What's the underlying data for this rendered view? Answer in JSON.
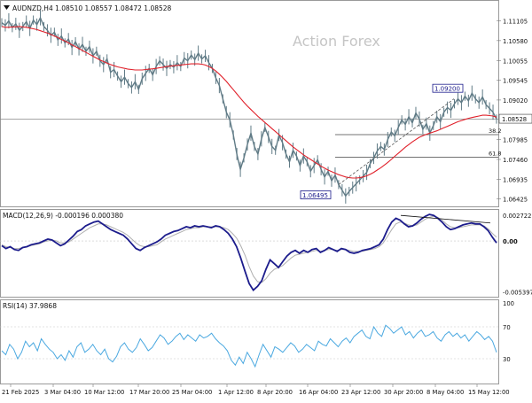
{
  "colors": {
    "price": "#607b86",
    "ma": "#e0202a",
    "macd": "#1c1c8c",
    "signal": "#b0b0b0",
    "rsi": "#4aa8e0",
    "grid": "#c8c8c8",
    "hline": "#888888",
    "text": "#111111",
    "watermark": "#c5c5c5"
  },
  "watermark": "Action Forex",
  "chart_data": [
    {
      "type": "line",
      "title": "AUDNZD,H4  1.08510 1.08557 1.08472 1.08528",
      "header_icon": "triangle-down-icon",
      "ylim": [
        1.0625,
        1.116
      ],
      "yticks": [
        "1.11105",
        "1.10580",
        "1.10055",
        "1.09545",
        "1.09020",
        "1.08528",
        "1.07985",
        "1.07460",
        "1.06935",
        "1.06425"
      ],
      "last_price_label": "1.08528",
      "fib_levels": [
        {
          "label": "38.2",
          "value": 1.0811,
          "x_start": "7 Apr"
        },
        {
          "label": "61.8",
          "value": 1.0752,
          "x_start": "13 Apr"
        }
      ],
      "last_price_line": 1.0852,
      "annotations": [
        {
          "text": "1.06495",
          "value": 1.06495,
          "at": "18 Apr"
        },
        {
          "text": "1.09200",
          "value": 1.092,
          "at": "7 May"
        }
      ],
      "series": [
        {
          "role": "price",
          "values": [
            1.1105,
            1.1098,
            1.111,
            1.1092,
            1.1102,
            1.1085,
            1.1095,
            1.1108,
            1.109,
            1.1112,
            1.11,
            1.1118,
            1.1095,
            1.1085,
            1.1072,
            1.108,
            1.106,
            1.107,
            1.1052,
            1.1062,
            1.104,
            1.1055,
            1.1035,
            1.1048,
            1.103,
            1.1042,
            1.1018,
            1.103,
            1.1005,
            1.0995,
            1.101,
            1.0975,
            1.0982,
            1.0965,
            1.095,
            1.0962,
            1.0945,
            1.0935,
            1.095,
            1.093,
            1.0958,
            1.0972,
            1.0985,
            1.0968,
            1.099,
            1.1005,
            1.0995,
            1.0985,
            1.0995,
            1.0988,
            1.1,
            1.099,
            1.1012,
            1.1005,
            1.102,
            1.1008,
            1.1025,
            1.101,
            1.1018,
            1.1,
            1.0985,
            1.096,
            1.094,
            1.0905,
            1.087,
            1.085,
            1.081,
            1.076,
            1.072,
            1.075,
            1.0785,
            1.0815,
            1.078,
            1.076,
            1.08,
            1.083,
            1.0805,
            1.078,
            1.077,
            1.081,
            1.079,
            1.076,
            1.074,
            1.077,
            1.0755,
            1.073,
            1.0755,
            1.074,
            1.0715,
            1.073,
            1.0745,
            1.072,
            1.07,
            1.0715,
            1.069,
            1.0705,
            1.068,
            1.0665,
            1.065,
            1.0662,
            1.0672,
            1.0682,
            1.0692,
            1.0702,
            1.0712,
            1.0735,
            1.075,
            1.0768,
            1.078,
            1.0772,
            1.0798,
            1.0818,
            1.0808,
            1.083,
            1.085,
            1.0838,
            1.0858,
            1.0842,
            1.0868,
            1.0852,
            1.0825,
            1.084,
            1.0815,
            1.0835,
            1.0858,
            1.0845,
            1.087,
            1.0882,
            1.0875,
            1.0892,
            1.0905,
            1.0895,
            1.0912,
            1.09,
            1.092,
            1.0905,
            1.0895,
            1.091,
            1.089,
            1.088,
            1.087,
            1.0852
          ]
        },
        {
          "role": "moving-average",
          "values": [
            1.1095,
            1.1093,
            1.1093,
            1.1094,
            1.1094,
            1.1095,
            1.1094,
            1.1093,
            1.1091,
            1.1089,
            1.1087,
            1.1084,
            1.1081,
            1.1078,
            1.1074,
            1.107,
            1.1066,
            1.1061,
            1.1057,
            1.1052,
            1.1047,
            1.1042,
            1.1037,
            1.1032,
            1.1027,
            1.1022,
            1.1017,
            1.1012,
            1.1007,
            1.1003,
            1.0999,
            1.0995,
            1.0992,
            1.0989,
            1.0987,
            1.0985,
            1.0983,
            1.0982,
            1.0981,
            1.0981,
            1.0981,
            1.0982,
            1.0983,
            1.0984,
            1.0985,
            1.0987,
            1.0988,
            1.099,
            1.0991,
            1.0992,
            1.0993,
            1.0994,
            1.0995,
            1.0996,
            1.0997,
            1.0997,
            1.0997,
            1.0996,
            1.0994,
            1.099,
            1.0985,
            1.0978,
            1.097,
            1.0961,
            1.0951,
            1.094,
            1.0929,
            1.0918,
            1.0907,
            1.0896,
            1.0886,
            1.0877,
            1.0868,
            1.0859,
            1.0851,
            1.0843,
            1.0835,
            1.0827,
            1.0819,
            1.0811,
            1.0803,
            1.0795,
            1.0787,
            1.0779,
            1.0772,
            1.0765,
            1.0758,
            1.0752,
            1.0746,
            1.074,
            1.0734,
            1.0728,
            1.0723,
            1.0718,
            1.0714,
            1.071,
            1.0706,
            1.0703,
            1.07,
            1.0698,
            1.0697,
            1.0697,
            1.0698,
            1.07,
            1.0703,
            1.0707,
            1.0712,
            1.0718,
            1.0724,
            1.0731,
            1.0738,
            1.0746,
            1.0754,
            1.0762,
            1.077,
            1.0778,
            1.0785,
            1.0792,
            1.0798,
            1.0804,
            1.0808,
            1.0812,
            1.0815,
            1.0818,
            1.0821,
            1.0825,
            1.0829,
            1.0833,
            1.0837,
            1.0841,
            1.0845,
            1.0848,
            1.0851,
            1.0854,
            1.0856,
            1.0858,
            1.086,
            1.0862,
            1.0862,
            1.0861,
            1.086,
            1.0857
          ]
        }
      ]
    },
    {
      "type": "line",
      "title": "MACD(12,26,9) -0.000196 0.000380",
      "ylim": [
        -0.0058,
        0.003
      ],
      "yticks": [
        "0.002722",
        "0.00",
        "-0.005397"
      ],
      "zero_label": "0.00",
      "series": [
        {
          "role": "macd",
          "values": [
            -0.0005,
            -0.0008,
            -0.0006,
            -0.0009,
            -0.001,
            -0.0007,
            -0.0006,
            -0.0004,
            -0.0003,
            -0.0002,
            0.0,
            0.0002,
            0.0001,
            -0.0002,
            -0.0005,
            -0.0003,
            0.0001,
            0.0005,
            0.001,
            0.0012,
            0.0016,
            0.0018,
            0.002,
            0.0021,
            0.0018,
            0.0015,
            0.0012,
            0.001,
            0.0008,
            0.0006,
            0.0002,
            -0.0003,
            -0.0008,
            -0.001,
            -0.0007,
            -0.0005,
            -0.0003,
            -0.0001,
            0.0002,
            0.0006,
            0.0008,
            0.001,
            0.0011,
            0.0013,
            0.0015,
            0.0014,
            0.0016,
            0.0015,
            0.0016,
            0.0015,
            0.0014,
            0.0016,
            0.0015,
            0.0012,
            0.0008,
            0.0002,
            -0.0006,
            -0.0018,
            -0.0032,
            -0.0045,
            -0.0052,
            -0.0048,
            -0.0042,
            -0.003,
            -0.002,
            -0.0024,
            -0.0028,
            -0.0022,
            -0.0016,
            -0.0012,
            -0.001,
            -0.0013,
            -0.001,
            -0.0012,
            -0.0009,
            -0.0008,
            -0.0012,
            -0.001,
            -0.0007,
            -0.0009,
            -0.0011,
            -0.0008,
            -0.0009,
            -0.0012,
            -0.0013,
            -0.0012,
            -0.001,
            -0.0009,
            -0.0008,
            -0.0006,
            -0.0004,
            0.0002,
            0.0012,
            0.002,
            0.0024,
            0.0022,
            0.0018,
            0.0015,
            0.0016,
            0.0019,
            0.0023,
            0.0026,
            0.0028,
            0.0027,
            0.0024,
            0.002,
            0.0015,
            0.0012,
            0.0013,
            0.0015,
            0.0017,
            0.0018,
            0.0019,
            0.0018,
            0.0018,
            0.0015,
            0.0011,
            0.0004,
            -0.0002
          ]
        },
        {
          "role": "signal",
          "values": [
            -0.0004,
            -0.0006,
            -0.0007,
            -0.0008,
            -0.0008,
            -0.0007,
            -0.0006,
            -0.0005,
            -0.0004,
            -0.0003,
            -0.0001,
            0.0,
            0.0001,
            0.0,
            -0.0002,
            -0.0002,
            -0.0001,
            0.0002,
            0.0005,
            0.0008,
            0.0011,
            0.0014,
            0.0016,
            0.0018,
            0.0018,
            0.0017,
            0.0015,
            0.0013,
            0.0011,
            0.0009,
            0.0006,
            0.0002,
            -0.0002,
            -0.0005,
            -0.0006,
            -0.0006,
            -0.0005,
            -0.0004,
            -0.0001,
            0.0002,
            0.0004,
            0.0006,
            0.0008,
            0.001,
            0.0012,
            0.0013,
            0.0014,
            0.0014,
            0.0015,
            0.0015,
            0.0015,
            0.0015,
            0.0015,
            0.0014,
            0.0012,
            0.0008,
            0.0003,
            -0.0005,
            -0.0015,
            -0.0027,
            -0.0037,
            -0.0043,
            -0.0044,
            -0.004,
            -0.0034,
            -0.003,
            -0.0028,
            -0.0026,
            -0.0022,
            -0.0018,
            -0.0015,
            -0.0014,
            -0.0013,
            -0.0012,
            -0.0011,
            -0.001,
            -0.0011,
            -0.001,
            -0.0009,
            -0.0009,
            -0.001,
            -0.0009,
            -0.0009,
            -0.001,
            -0.0011,
            -0.0011,
            -0.0011,
            -0.001,
            -0.0009,
            -0.0008,
            -0.0006,
            -0.0002,
            0.0005,
            0.0012,
            0.0018,
            0.002,
            0.0019,
            0.0017,
            0.0016,
            0.0017,
            0.002,
            0.0023,
            0.0025,
            0.0026,
            0.0025,
            0.0022,
            0.0018,
            0.0015,
            0.0014,
            0.0014,
            0.0015,
            0.0016,
            0.0017,
            0.0017,
            0.0017,
            0.0016,
            0.0013,
            0.0008,
            0.0004
          ]
        }
      ],
      "trendline": {
        "from": 0.0027,
        "to": 0.0019
      }
    },
    {
      "type": "line",
      "title": "RSI(14) 37.9868",
      "ylim": [
        0,
        100
      ],
      "yticks": [
        "100",
        "70",
        "30",
        "0"
      ],
      "levels": [
        70,
        30
      ],
      "series": [
        {
          "role": "rsi",
          "values": [
            40,
            35,
            48,
            42,
            30,
            38,
            52,
            45,
            50,
            40,
            55,
            48,
            42,
            38,
            30,
            35,
            28,
            40,
            32,
            45,
            50,
            38,
            42,
            48,
            40,
            35,
            42,
            30,
            26,
            33,
            45,
            50,
            42,
            38,
            44,
            55,
            48,
            40,
            44,
            52,
            60,
            56,
            48,
            52,
            58,
            62,
            54,
            60,
            56,
            52,
            60,
            56,
            58,
            62,
            55,
            50,
            46,
            40,
            28,
            22,
            32,
            24,
            38,
            30,
            20,
            35,
            48,
            40,
            32,
            45,
            42,
            38,
            44,
            50,
            46,
            38,
            42,
            48,
            44,
            40,
            52,
            48,
            46,
            55,
            50,
            45,
            52,
            56,
            50,
            58,
            62,
            66,
            58,
            55,
            70,
            62,
            58,
            72,
            68,
            62,
            66,
            70,
            60,
            64,
            56,
            62,
            66,
            58,
            60,
            64,
            56,
            52,
            60,
            64,
            58,
            62,
            56,
            60,
            52,
            58,
            64,
            60,
            54,
            58,
            52,
            38
          ]
        }
      ]
    }
  ],
  "x_axis": {
    "labels": [
      "21 Feb 2025",
      "3 Mar 04:00",
      "10 Mar 12:00",
      "17 Mar 20:00",
      "25 Mar 04:00",
      "1 Apr 12:00",
      "8 Apr 20:00",
      "16 Apr 04:00",
      "23 Apr 12:00",
      "30 Apr 20:00",
      "8 May 04:00",
      "15 May 12:00"
    ]
  }
}
